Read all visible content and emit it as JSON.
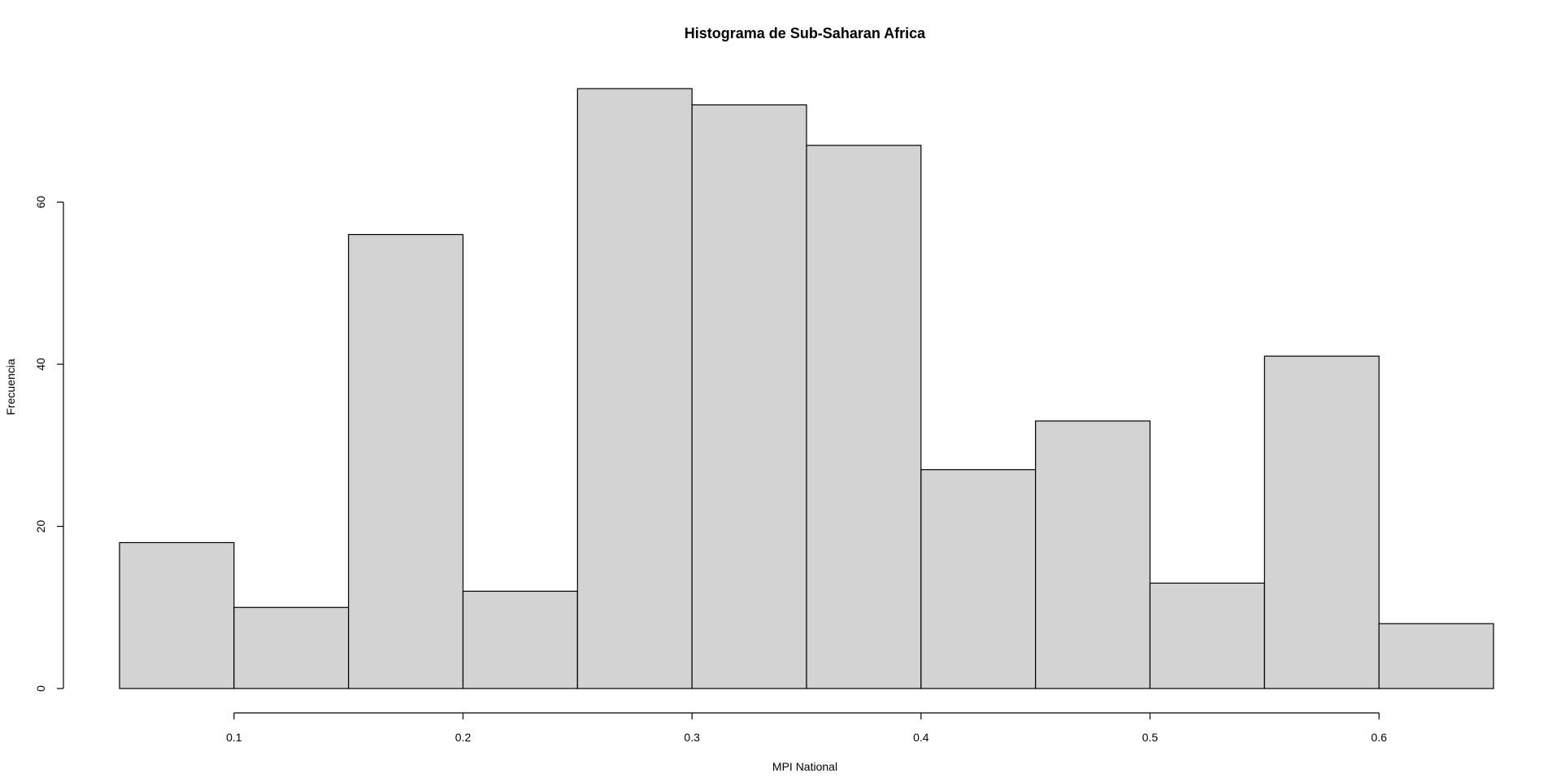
{
  "chart_data": {
    "type": "bar",
    "title": "Histograma de Sub-Saharan Africa",
    "xlabel": "MPI National",
    "ylabel": "Frecuencia",
    "bin_edges": [
      0.05,
      0.1,
      0.15,
      0.2,
      0.25,
      0.3,
      0.35,
      0.4,
      0.45,
      0.5,
      0.55,
      0.6,
      0.65
    ],
    "values": [
      18,
      10,
      56,
      12,
      74,
      72,
      67,
      27,
      33,
      13,
      41,
      8
    ],
    "xlim": [
      0.05,
      0.65
    ],
    "ylim": [
      0,
      74
    ],
    "x_ticks": [
      0.1,
      0.2,
      0.3,
      0.4,
      0.5,
      0.6
    ],
    "x_tick_labels": [
      "0.1",
      "0.2",
      "0.3",
      "0.4",
      "0.5",
      "0.6"
    ],
    "y_ticks": [
      0,
      20,
      40,
      60
    ],
    "y_tick_labels": [
      "0",
      "20",
      "40",
      "60"
    ],
    "grid": false,
    "bar_color": "#d3d3d3",
    "border_color": "#000000"
  }
}
